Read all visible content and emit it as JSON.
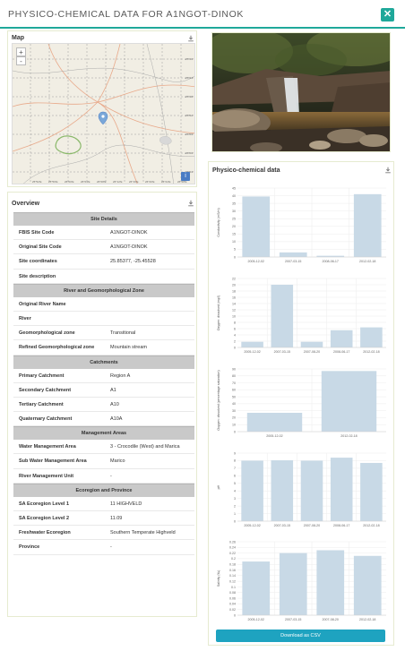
{
  "modal": {
    "title": "PHYSICO-CHEMICAL DATA FOR A1NGOT-DINOK",
    "close_icon": "close-icon"
  },
  "map": {
    "title": "Map",
    "zoom_in": "+",
    "zoom_out": "-",
    "info": "i",
    "attribution": "",
    "lat_labels": [
      "-25°40'",
      "-25°44'",
      "-25°48'",
      "-25°52'",
      "-25°56'",
      "-26°00'",
      "-26°04'"
    ],
    "lon_labels": [
      "25°52'E",
      "25°56'E",
      "26°00'E",
      "26°04'E",
      "26°08'E",
      "26°12'E",
      "26°16'E",
      "26°20'E",
      "26°24'E",
      "26°28'E"
    ]
  },
  "photo": {
    "icon": "waterfall-photo"
  },
  "overview": {
    "title": "Overview",
    "sections": [
      {
        "header": "Site Details",
        "rows": [
          {
            "label": "FBIS Site Code",
            "value": "A1NGOT-DINOK"
          },
          {
            "label": "Original Site Code",
            "value": "A1NGOT-DINOK"
          },
          {
            "label": "Site coordinates",
            "value": "25.85377, -25.45528"
          },
          {
            "label": "Site description",
            "value": ""
          }
        ]
      },
      {
        "header": "River and Geomorphological Zone",
        "rows": [
          {
            "label": "Original River Name",
            "value": ""
          },
          {
            "label": "River",
            "value": ""
          },
          {
            "label": "Geomorphological zone",
            "value": "Transitional"
          },
          {
            "label": "Refined Geomorphological zone",
            "value": "Mountain stream"
          }
        ]
      },
      {
        "header": "Catchments",
        "rows": [
          {
            "label": "Primary Catchment",
            "value": "Region A"
          },
          {
            "label": "Secondary Catchment",
            "value": "A1"
          },
          {
            "label": "Tertiary Catchment",
            "value": "A10"
          },
          {
            "label": "Quaternary Catchment",
            "value": "A10A"
          }
        ]
      },
      {
        "header": "Management Areas",
        "rows": [
          {
            "label": "Water Management Area",
            "value": "3 - Crocodile (West) and Marica"
          },
          {
            "label": "Sub Water Management Area",
            "value": "Marico"
          },
          {
            "label": "River Management Unit",
            "value": "-"
          }
        ]
      },
      {
        "header": "Ecoregion and Province",
        "rows": [
          {
            "label": "SA Ecoregion Level 1",
            "value": "11 HIGHVELD"
          },
          {
            "label": "SA Ecoregion Level 2",
            "value": "11.09"
          },
          {
            "label": "Freshwater Ecoregion",
            "value": "Southern Temperate Highveld"
          },
          {
            "label": "Province",
            "value": "-"
          }
        ]
      }
    ]
  },
  "physchem": {
    "title": "Physico-chemical data",
    "download_label": "Download as CSV"
  },
  "colors": {
    "accent": "#1fa89a",
    "bar": "#c8d9e6",
    "csv_button": "#1ea3c0"
  },
  "chart_data": [
    {
      "type": "bar",
      "ylabel": "Conductivity (mS/m)",
      "categories": [
        "2005-12-02",
        "2007-03-15",
        "2008-06-17",
        "2012-02-18"
      ],
      "values": [
        39.5,
        3,
        0.8,
        41
      ],
      "ylim": [
        0,
        45
      ],
      "yticks": [
        0,
        5,
        10,
        15,
        20,
        25,
        30,
        35,
        40,
        45
      ]
    },
    {
      "type": "bar",
      "ylabel": "Oxygen: dissolved (mg/l)",
      "categories": [
        "2005-12-02",
        "2007-03-15",
        "2007-08-20",
        "2008-06-17",
        "2012-02-18"
      ],
      "values": [
        1.8,
        20,
        1.8,
        5.5,
        6.4
      ],
      "ylim": [
        0,
        22
      ],
      "yticks": [
        0,
        2,
        4,
        6,
        8,
        10,
        12,
        14,
        16,
        18,
        20,
        22
      ]
    },
    {
      "type": "bar",
      "ylabel": "Oxygen: dissolved (percentage saturation)",
      "categories": [
        "2005-12-02",
        "2012-02-18"
      ],
      "values": [
        27,
        87
      ],
      "ylim": [
        0,
        90
      ],
      "yticks": [
        0,
        10,
        20,
        30,
        40,
        50,
        60,
        70,
        80,
        90
      ]
    },
    {
      "type": "bar",
      "ylabel": "pH",
      "categories": [
        "2005-12-02",
        "2007-03-15",
        "2007-08-20",
        "2008-06-17",
        "2012-02-18"
      ],
      "values": [
        8,
        8.05,
        8,
        8.4,
        7.7
      ],
      "ylim": [
        0,
        9
      ],
      "yticks": [
        0,
        1,
        2,
        3,
        4,
        5,
        6,
        7,
        8,
        9
      ]
    },
    {
      "type": "bar",
      "ylabel": "Salinity (‰)",
      "categories": [
        "2005-12-02",
        "2007-03-15",
        "2007-08-20",
        "2012-02-18"
      ],
      "values": [
        0.19,
        0.22,
        0.23,
        0.21
      ],
      "ylim": [
        0,
        0.26
      ],
      "yticks": [
        0,
        0.02,
        0.04,
        0.06,
        0.08,
        0.1,
        0.12,
        0.14,
        0.16,
        0.18,
        0.2,
        0.22,
        0.24,
        0.26
      ]
    }
  ]
}
